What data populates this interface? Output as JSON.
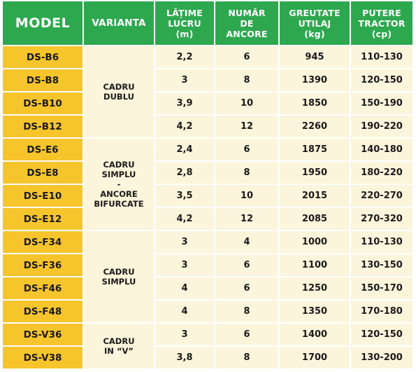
{
  "headers": {
    "model": "MODEL",
    "variant": "VARIANTA",
    "width": "LĂȚIME\nLUCRU\n(m)",
    "anchors": "NUMĂR\nDE\nANCORE",
    "weight": "GREUTATE\nUTILAJ\n(kg)",
    "power": "PUTERE\nTRACTOR\n(cp)"
  },
  "groups": [
    {
      "variant": "CADRU\nDUBLU",
      "rows": [
        {
          "model": "DS-B6",
          "width": "2,2",
          "anchors": "6",
          "weight": "945",
          "power": "110-130"
        },
        {
          "model": "DS-B8",
          "width": "3",
          "anchors": "8",
          "weight": "1390",
          "power": "120-150"
        },
        {
          "model": "DS-B10",
          "width": "3,9",
          "anchors": "10",
          "weight": "1850",
          "power": "150-190"
        },
        {
          "model": "DS-B12",
          "width": "4,2",
          "anchors": "12",
          "weight": "2260",
          "power": "190-220"
        }
      ]
    },
    {
      "variant": "CADRU\nSIMPLU\n-\nANCORE\nBIFURCATE",
      "rows": [
        {
          "model": "DS-E6",
          "width": "2,4",
          "anchors": "6",
          "weight": "1875",
          "power": "140-180"
        },
        {
          "model": "DS-E8",
          "width": "2,8",
          "anchors": "8",
          "weight": "1950",
          "power": "180-220"
        },
        {
          "model": "DS-E10",
          "width": "3,5",
          "anchors": "10",
          "weight": "2015",
          "power": "220-270"
        },
        {
          "model": "DS-E12",
          "width": "4,2",
          "anchors": "12",
          "weight": "2085",
          "power": "270-320"
        }
      ]
    },
    {
      "variant": "CADRU\nSIMPLU",
      "rows": [
        {
          "model": "DS-F34",
          "width": "3",
          "anchors": "4",
          "weight": "1000",
          "power": "110-130"
        },
        {
          "model": "DS-F36",
          "width": "3",
          "anchors": "6",
          "weight": "1100",
          "power": "130-150"
        },
        {
          "model": "DS-F46",
          "width": "4",
          "anchors": "6",
          "weight": "1250",
          "power": "150-170"
        },
        {
          "model": "DS-F48",
          "width": "4",
          "anchors": "8",
          "weight": "1350",
          "power": "170-180"
        }
      ]
    },
    {
      "variant": "CADRU\nIN “V”",
      "rows": [
        {
          "model": "DS-V36",
          "width": "3",
          "anchors": "6",
          "weight": "1400",
          "power": "120-150"
        },
        {
          "model": "DS-V38",
          "width": "3,8",
          "anchors": "8",
          "weight": "1700",
          "power": "130-200"
        }
      ]
    }
  ],
  "colors": {
    "header_bg": "#2ea84f",
    "model_bg": "#f6c42b",
    "cell_bg": "#fbf5dc"
  }
}
